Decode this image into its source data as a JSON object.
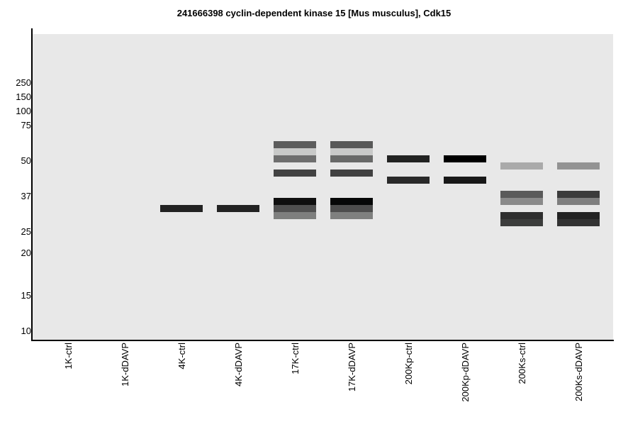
{
  "chart_data": {
    "type": "western-blot",
    "title": "241666398 cyclin-dependent kinase 15 [Mus musculus], Cdk15",
    "ylabel": "",
    "xlabel": "",
    "yscale": "log",
    "markers": [
      250,
      150,
      100,
      75,
      50,
      37,
      25,
      20,
      15,
      10
    ],
    "lanes": [
      "1K-ctrl",
      "1K-dDAVP",
      "4K-ctrl",
      "4K-dDAVP",
      "17K-ctrl",
      "17K-dDAVP",
      "200Kp-ctrl",
      "200Kp-dDAVP",
      "200Ks-ctrl",
      "200Ks-dDAVP"
    ],
    "bands": [
      {
        "lane": 2,
        "mw": 32.1,
        "color": "#222222"
      },
      {
        "lane": 3,
        "mw": 32.1,
        "color": "#222222"
      },
      {
        "lane": 4,
        "mw": 59.8,
        "color": "#5c5c5c"
      },
      {
        "lane": 4,
        "mw": 55.1,
        "color": "#c8c9c8"
      },
      {
        "lane": 4,
        "mw": 50.8,
        "color": "#6e6e6e"
      },
      {
        "lane": 4,
        "mw": 44.9,
        "color": "#424242"
      },
      {
        "lane": 4,
        "mw": 34.8,
        "color": "#0f0f0f"
      },
      {
        "lane": 4,
        "mw": 32.1,
        "color": "#505050"
      },
      {
        "lane": 4,
        "mw": 29.7,
        "color": "#7e7f7e"
      },
      {
        "lane": 5,
        "mw": 59.8,
        "color": "#585858"
      },
      {
        "lane": 5,
        "mw": 55.1,
        "color": "#c8c9c8"
      },
      {
        "lane": 5,
        "mw": 50.8,
        "color": "#686968"
      },
      {
        "lane": 5,
        "mw": 44.9,
        "color": "#414141"
      },
      {
        "lane": 5,
        "mw": 34.8,
        "color": "#060707"
      },
      {
        "lane": 5,
        "mw": 32.1,
        "color": "#4d4d4d"
      },
      {
        "lane": 5,
        "mw": 29.7,
        "color": "#7f807f"
      },
      {
        "lane": 6,
        "mw": 50.8,
        "color": "#222322"
      },
      {
        "lane": 6,
        "mw": 42.2,
        "color": "#2a2a2a"
      },
      {
        "lane": 7,
        "mw": 50.8,
        "color": "#000000"
      },
      {
        "lane": 7,
        "mw": 42.2,
        "color": "#181818"
      },
      {
        "lane": 8,
        "mw": 47.6,
        "color": "#aaaaaa"
      },
      {
        "lane": 8,
        "mw": 37.4,
        "color": "#5a5a5a"
      },
      {
        "lane": 8,
        "mw": 34.8,
        "color": "#8a8a8a"
      },
      {
        "lane": 8,
        "mw": 29.7,
        "color": "#2e2e2e"
      },
      {
        "lane": 8,
        "mw": 27.5,
        "color": "#3c3d3c"
      },
      {
        "lane": 9,
        "mw": 47.6,
        "color": "#939393"
      },
      {
        "lane": 9,
        "mw": 37.4,
        "color": "#3b3b3b"
      },
      {
        "lane": 9,
        "mw": 34.8,
        "color": "#7f7f7f"
      },
      {
        "lane": 9,
        "mw": 29.7,
        "color": "#232323"
      },
      {
        "lane": 9,
        "mw": 27.5,
        "color": "#333333"
      }
    ],
    "background_color": "#e8e8e8"
  }
}
